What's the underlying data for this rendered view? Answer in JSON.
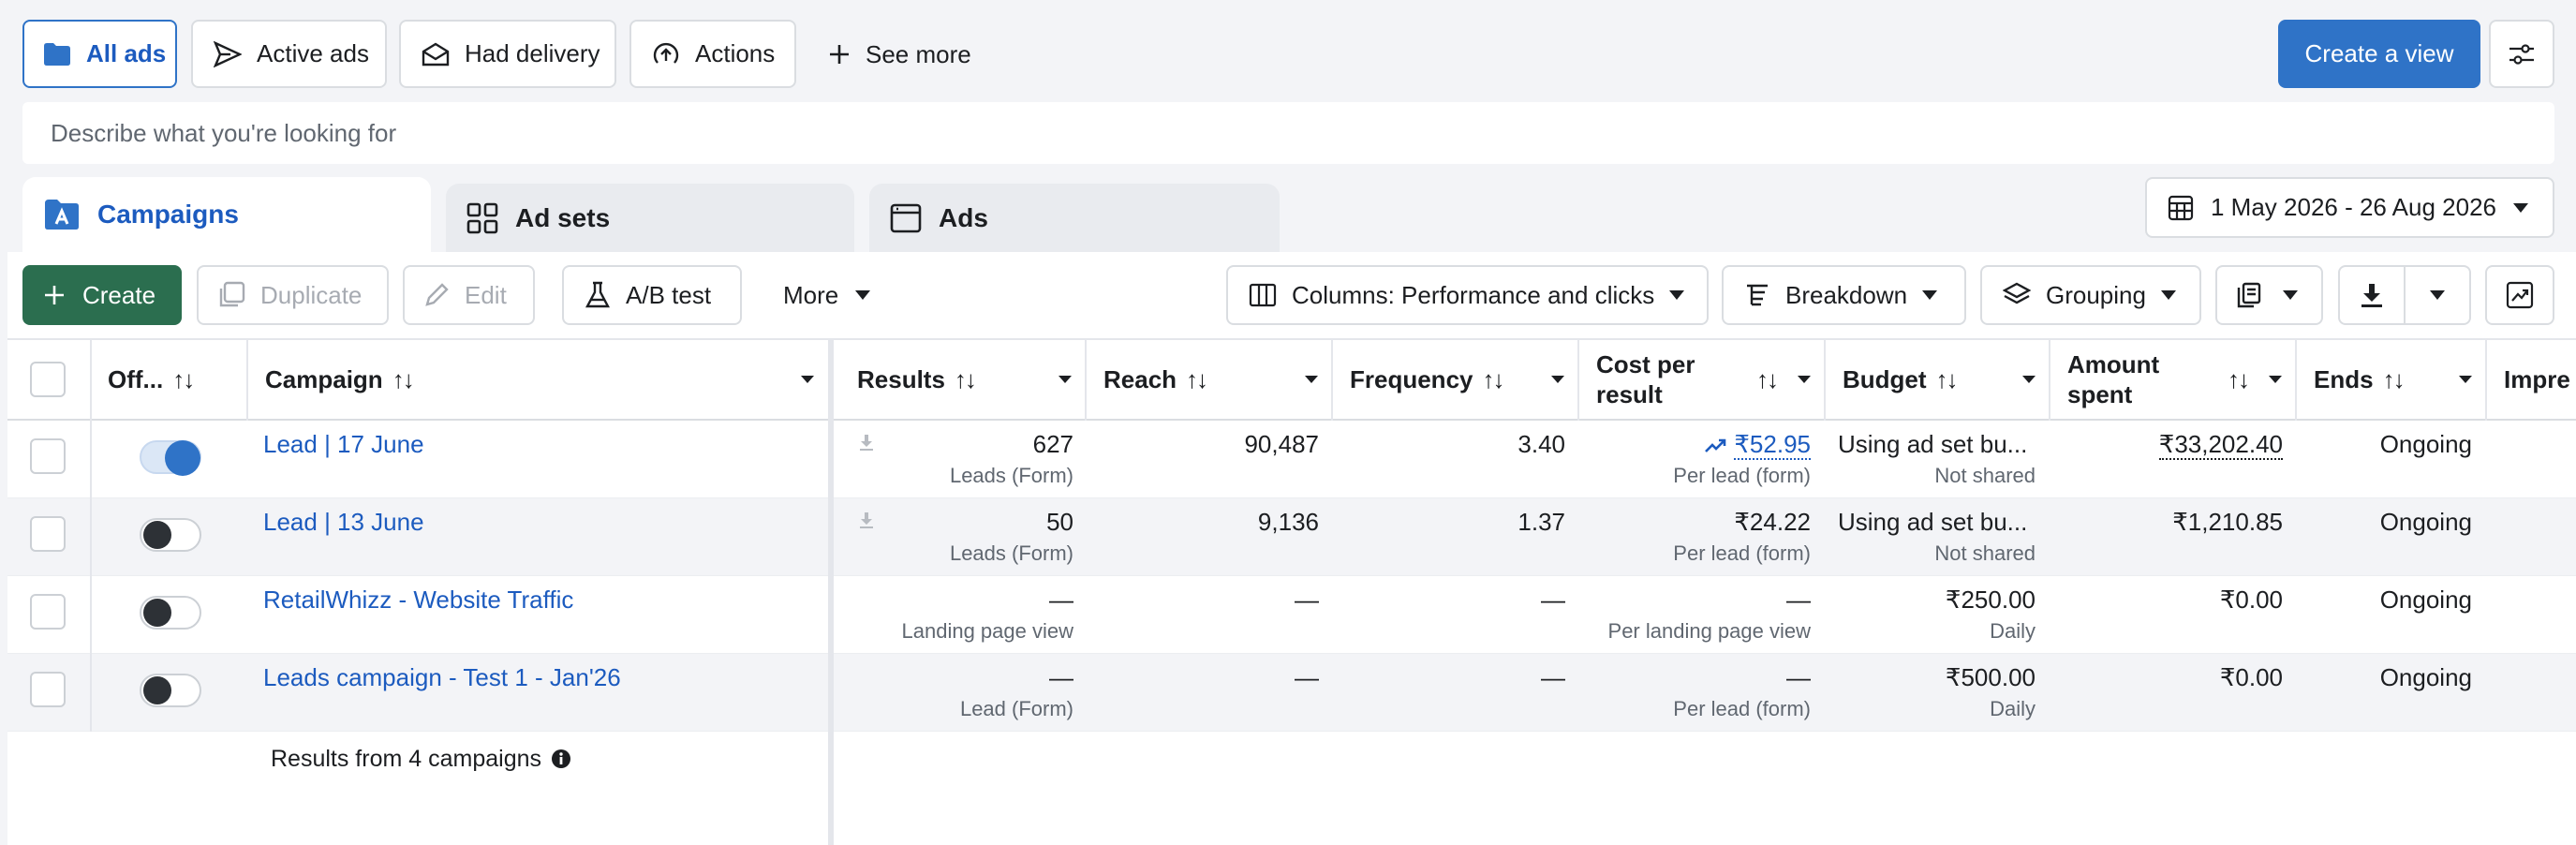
{
  "filters": {
    "all_ads": "All ads",
    "active_ads": "Active ads",
    "had_delivery": "Had delivery",
    "actions": "Actions",
    "see_more": "See more",
    "create_view": "Create a view"
  },
  "search": {
    "placeholder": "Describe what you're looking for"
  },
  "tabs": {
    "campaigns": "Campaigns",
    "ad_sets": "Ad sets",
    "ads": "Ads"
  },
  "date_range": "1 May 2026 - 26 Aug 2026",
  "toolbar": {
    "create": "Create",
    "duplicate": "Duplicate",
    "edit": "Edit",
    "ab_test": "A/B test",
    "more": "More",
    "columns": "Columns: Performance and clicks",
    "breakdown": "Breakdown",
    "grouping": "Grouping"
  },
  "columns": {
    "off": "Off...",
    "campaign": "Campaign",
    "results": "Results",
    "reach": "Reach",
    "frequency": "Frequency",
    "cost_line1": "Cost per",
    "cost_line2": "result",
    "budget": "Budget",
    "amount_line1": "Amount",
    "amount_line2": "spent",
    "ends": "Ends",
    "impressions": "Impre"
  },
  "rows": [
    {
      "name": "Lead | 17 June",
      "status_on": true,
      "results": "627",
      "results_sub": "Leads (Form)",
      "reach": "90,487",
      "frequency": "3.40",
      "cost": "₹52.95",
      "cost_sub": "Per lead (form)",
      "budget": "Using ad set bu...",
      "budget_sub": "Not shared",
      "spent": "₹33,202.40",
      "ends": "Ongoing"
    },
    {
      "name": "Lead | 13 June",
      "status_on": false,
      "results": "50",
      "results_sub": "Leads (Form)",
      "reach": "9,136",
      "frequency": "1.37",
      "cost": "₹24.22",
      "cost_sub": "Per lead (form)",
      "budget": "Using ad set bu...",
      "budget_sub": "Not shared",
      "spent": "₹1,210.85",
      "ends": "Ongoing"
    },
    {
      "name": "RetailWhizz - Website Traffic",
      "status_on": false,
      "results": "—",
      "results_sub": "Landing page view",
      "reach": "—",
      "frequency": "—",
      "cost": "—",
      "cost_sub": "Per landing page view",
      "budget": "₹250.00",
      "budget_sub": "Daily",
      "spent": "₹0.00",
      "ends": "Ongoing"
    },
    {
      "name": "Leads campaign - Test 1 - Jan'26",
      "status_on": false,
      "results": "—",
      "results_sub": "Lead (Form)",
      "reach": "—",
      "frequency": "—",
      "cost": "—",
      "cost_sub": "Per lead (form)",
      "budget": "₹500.00",
      "budget_sub": "Daily",
      "spent": "₹0.00",
      "ends": "Ongoing"
    }
  ],
  "footer": {
    "summary": "Results from 4 campaigns"
  },
  "colors": {
    "accent": "#2f73c7",
    "create_green": "#2b6e4f",
    "link": "#1c5bbf"
  }
}
